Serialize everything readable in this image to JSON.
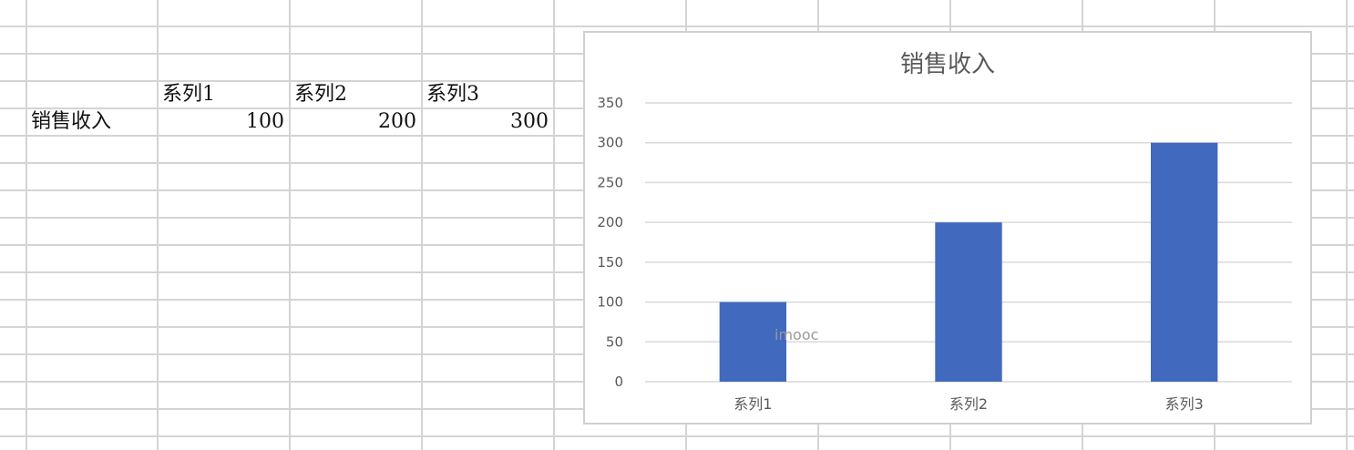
{
  "sheet": {
    "headers": [
      "系列1",
      "系列2",
      "系列3"
    ],
    "row_label": "销售收入",
    "values": [
      "100",
      "200",
      "300"
    ]
  },
  "chart_data": {
    "type": "bar",
    "title": "销售收入",
    "categories": [
      "系列1",
      "系列2",
      "系列3"
    ],
    "series": [
      {
        "values": [
          100,
          200,
          300
        ]
      }
    ],
    "ylim": [
      0,
      350
    ],
    "yticks": [
      0,
      50,
      100,
      150,
      200,
      250,
      300,
      350
    ],
    "grid": true,
    "bar_color": "#4169BD"
  },
  "watermark": "imooc"
}
